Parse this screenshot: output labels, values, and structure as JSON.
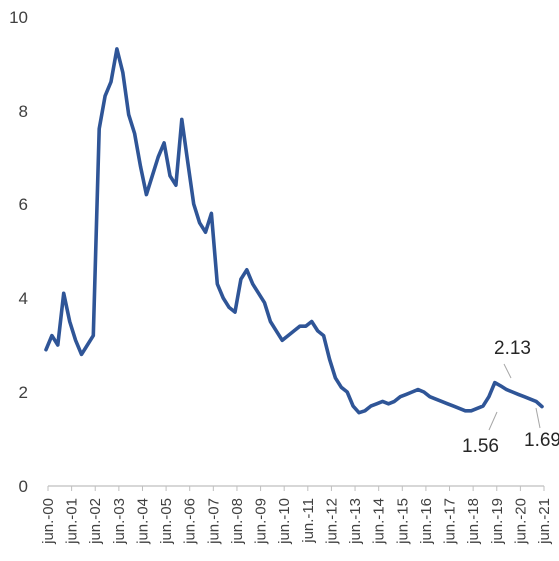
{
  "chart_data": {
    "type": "line",
    "title": "",
    "xlabel": "",
    "ylabel": "",
    "ylim": [
      0,
      10
    ],
    "yticks": [
      "0",
      "2",
      "4",
      "6",
      "8",
      "10"
    ],
    "grid": false,
    "legend": "none",
    "line_color": "#2F5597",
    "xticks": [
      "jun.-00",
      "jun.-01",
      "jun.-02",
      "jun.-03",
      "jun.-04",
      "jun.-05",
      "jun.-06",
      "jun.-07",
      "jun.-08",
      "jun.-09",
      "jun.-10",
      "jun.-11",
      "jun.-12",
      "jun.-13",
      "jun.-14",
      "jun.-15",
      "jun.-16",
      "jun.-17",
      "jun.-18",
      "jun.-19",
      "jun.-20",
      "jun.-21"
    ],
    "series": [
      {
        "x": [
          "2000-06",
          "2000-09",
          "2000-12",
          "2001-03",
          "2001-06",
          "2001-09",
          "2001-12",
          "2002-03",
          "2002-06",
          "2002-09",
          "2002-12",
          "2003-03",
          "2003-06",
          "2003-09",
          "2003-12",
          "2004-03",
          "2004-06",
          "2004-09",
          "2004-12",
          "2005-03",
          "2005-06",
          "2005-09",
          "2005-12",
          "2006-03",
          "2006-06",
          "2006-09",
          "2006-12",
          "2007-03",
          "2007-06",
          "2007-09",
          "2007-12",
          "2008-03",
          "2008-06",
          "2008-09",
          "2008-12",
          "2009-03",
          "2009-06",
          "2009-09",
          "2009-12",
          "2010-03",
          "2010-06",
          "2010-09",
          "2010-12",
          "2011-03",
          "2011-06",
          "2011-09",
          "2011-12",
          "2012-03",
          "2012-06",
          "2012-09",
          "2012-12",
          "2013-03",
          "2013-06",
          "2013-09",
          "2013-12",
          "2014-03",
          "2014-06",
          "2014-09",
          "2014-12",
          "2015-03",
          "2015-06",
          "2015-09",
          "2015-12",
          "2016-03",
          "2016-06",
          "2016-09",
          "2016-12",
          "2017-03",
          "2017-06",
          "2017-09",
          "2017-12",
          "2018-03",
          "2018-06",
          "2018-09",
          "2018-12",
          "2019-03",
          "2019-06",
          "2019-09",
          "2019-12",
          "2020-03",
          "2020-06",
          "2020-09",
          "2020-12",
          "2021-03",
          "2021-06"
        ],
        "values": [
          2.9,
          3.2,
          3.0,
          4.1,
          3.5,
          3.1,
          2.8,
          3.0,
          3.2,
          7.6,
          8.3,
          8.6,
          9.3,
          8.8,
          7.9,
          7.5,
          6.8,
          6.2,
          6.6,
          7.0,
          7.3,
          6.6,
          6.4,
          7.8,
          6.9,
          6.0,
          5.6,
          5.4,
          5.8,
          4.3,
          4.0,
          3.8,
          3.7,
          4.4,
          4.6,
          4.3,
          4.1,
          3.9,
          3.5,
          3.3,
          3.1,
          3.2,
          3.3,
          3.4,
          3.4,
          3.5,
          3.3,
          3.2,
          2.7,
          2.3,
          2.1,
          2.0,
          1.7,
          1.56,
          1.6,
          1.7,
          1.75,
          1.8,
          1.75,
          1.8,
          1.9,
          1.95,
          2.0,
          2.05,
          2.0,
          1.9,
          1.85,
          1.8,
          1.75,
          1.7,
          1.65,
          1.6,
          1.6,
          1.65,
          1.7,
          1.9,
          2.2,
          2.13,
          2.05,
          2.0,
          1.95,
          1.9,
          1.85,
          1.8,
          1.69
        ]
      }
    ],
    "annotations": [
      "2.13",
      "1.56",
      "1.69"
    ]
  }
}
